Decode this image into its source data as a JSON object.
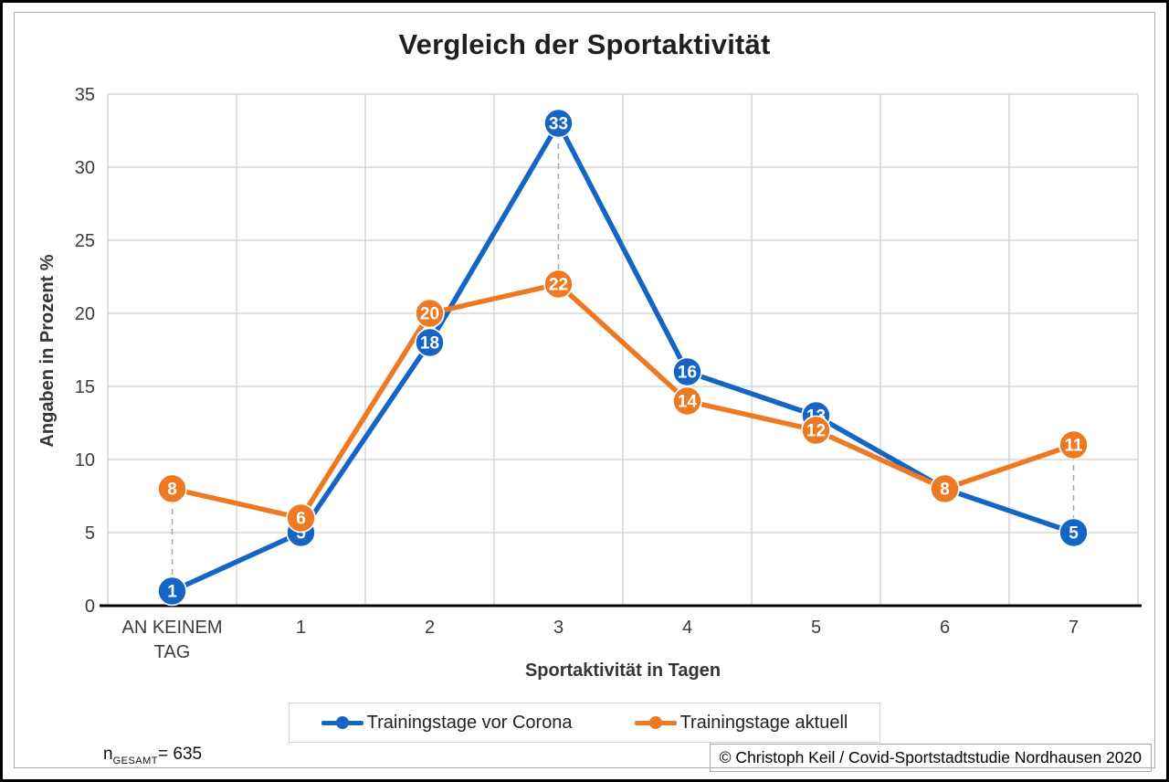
{
  "chart_data": {
    "type": "line",
    "title": "Vergleich der Sportaktivität",
    "xlabel": "Sportaktivität in Tagen",
    "ylabel": "Angaben in Prozent %",
    "categories": [
      "AN KEINEM\nTAG",
      "1",
      "2",
      "3",
      "4",
      "5",
      "6",
      "7"
    ],
    "series": [
      {
        "name": "Trainingstage vor Corona",
        "color": "#1565C4",
        "values": [
          1,
          5,
          18,
          33,
          16,
          13,
          8,
          5
        ]
      },
      {
        "name": "Trainingstage aktuell",
        "color": "#ED7A22",
        "values": [
          8,
          6,
          20,
          22,
          14,
          12,
          8,
          11
        ]
      }
    ],
    "ylim": [
      0,
      35
    ],
    "ytick_step": 5,
    "grid": true,
    "high_low_lines": true,
    "legend_position": "bottom",
    "colors": {
      "grid": "#c2c2c2",
      "leader_dashed": "#a6a6a6",
      "axis": "#000000",
      "tick_text": "#3d3d3d",
      "marker_label": "#ffffff"
    }
  },
  "footer": {
    "n_prefix": "n",
    "n_subscript": "GESAMT",
    "n_value": "= 635",
    "copyright": "© Christoph Keil / Covid-Sportstadtstudie Nordhausen 2020"
  }
}
